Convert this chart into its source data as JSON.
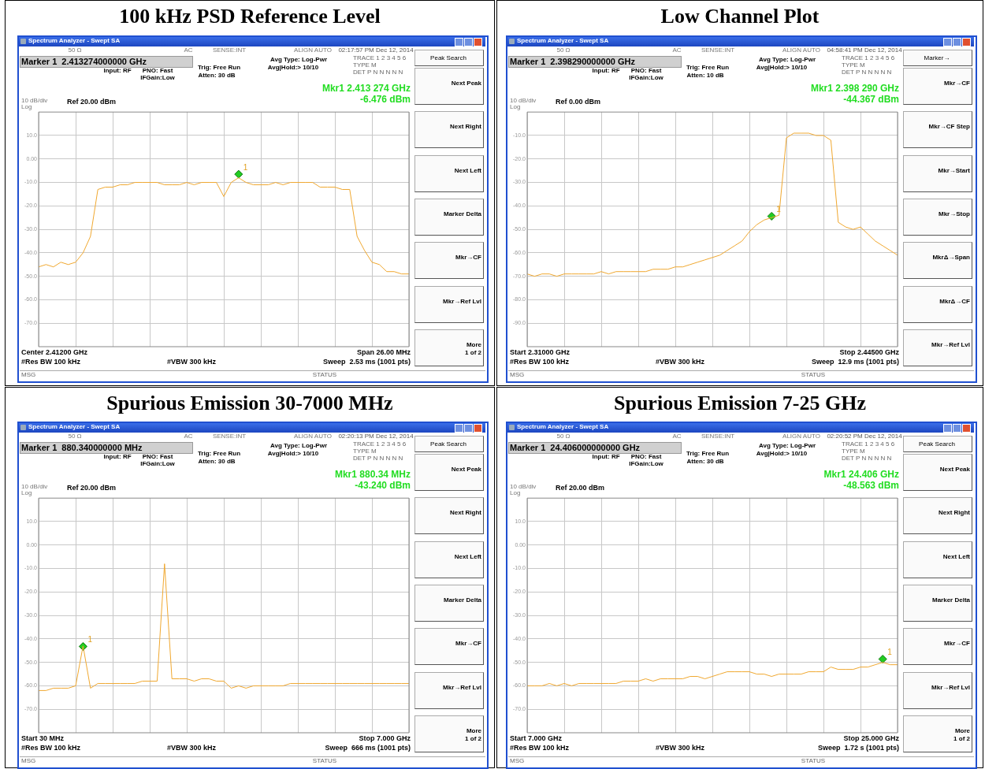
{
  "chart_data": [
    {
      "type": "line",
      "title": "100 kHz PSD Reference Level",
      "categories": [
        null,
        null,
        null,
        null,
        null,
        null,
        null,
        null,
        null,
        null,
        null,
        null,
        null,
        null,
        null,
        null,
        null,
        null,
        null,
        null,
        null,
        null,
        null,
        null,
        null,
        null,
        null,
        null,
        null,
        null,
        null,
        null,
        null,
        null,
        null,
        null,
        null,
        null,
        null,
        null,
        null,
        null,
        null,
        null,
        null,
        null,
        null,
        null,
        null,
        null,
        null
      ],
      "series": [
        {
          "color": "#f0a830",
          "values": [
            -46,
            -45,
            -46,
            -44,
            -45,
            -44,
            -40,
            -33,
            -13,
            -12,
            -12,
            -11,
            -11,
            -10,
            -10,
            -10,
            -10,
            -11,
            -11,
            -11,
            -10,
            -11,
            -10,
            -10,
            -10,
            -16,
            -10,
            -8,
            -10,
            -11,
            -11,
            -11,
            -10,
            -11,
            -10,
            -10,
            -10,
            -10,
            -12,
            -12,
            -12,
            -13,
            -13,
            -33,
            -39,
            -44,
            -45,
            -48,
            -48,
            -49,
            -49
          ]
        },
        {
          "type": "scatter",
          "marker": "diamond",
          "color": "#22cc22",
          "values": [
            null,
            null,
            null,
            null,
            null,
            null,
            null,
            null,
            null,
            null,
            null,
            null,
            null,
            null,
            null,
            null,
            null,
            null,
            null,
            null,
            null,
            null,
            null,
            null,
            null,
            null,
            null,
            -6.5,
            null,
            null,
            null,
            null,
            null,
            null,
            null,
            null,
            null,
            null,
            null,
            null,
            null,
            null,
            null,
            null,
            null,
            null,
            null,
            null,
            null,
            null,
            null
          ]
        }
      ],
      "ylim": [
        -80,
        20
      ],
      "yticks": [
        {
          "value": 10,
          "label": "10.0"
        },
        {
          "value": 0,
          "label": "0.00"
        },
        {
          "value": -10,
          "label": "-10.0"
        },
        {
          "value": -20,
          "label": "-20.0"
        },
        {
          "value": -30,
          "label": "-30.0"
        },
        {
          "value": -40,
          "label": "-40.0"
        },
        {
          "value": -50,
          "label": "-50.0"
        },
        {
          "value": -60,
          "label": "-60.0"
        },
        {
          "value": -70,
          "label": "-70.0"
        }
      ],
      "grid": true,
      "tick_labels": "y",
      "annotations": [
        "Spectrum Analyzer - Swept SA",
        "50 Ω",
        "AC",
        "SENSE:INT",
        "ALIGN AUTO",
        "02:17:57 PM Dec 12, 2014",
        "Marker 1  2.413274000000 GHz",
        "Input: RF",
        "PNO: Fast",
        "IFGain:Low",
        "Trig: Free Run",
        "Atten: 30 dB",
        "Avg Type: Log-Pwr",
        "Avg|Hold:> 10/10",
        "TRACE 1 2 3 4 5 6",
        "TYPE M",
        "DET P N N N N N",
        "Mkr1 2.413 274 GHz",
        "-6.476 dBm",
        "10 dB/div",
        "Log",
        "Ref 20.00 dBm",
        "Center 2.41200 GHz",
        "#Res BW 100 kHz",
        "#VBW 300 kHz",
        "Span 26.00 MHz",
        "Sweep  2.53 ms (1001 pts)",
        "MSG",
        "STATUS",
        "Peak Search",
        "Next Peak",
        "Next Right",
        "Next Left",
        "Marker Delta",
        "Mkr→CF",
        "Mkr→Ref Lvl",
        "More\n1 of 2",
        {
          "text": "1",
          "y": -6.5
        }
      ]
    },
    {
      "type": "line",
      "title": "Low Channel Plot",
      "categories": [
        null,
        null,
        null,
        null,
        null,
        null,
        null,
        null,
        null,
        null,
        null,
        null,
        null,
        null,
        null,
        null,
        null,
        null,
        null,
        null,
        null,
        null,
        null,
        null,
        null,
        null,
        null,
        null,
        null,
        null,
        null,
        null,
        null,
        null,
        null,
        null,
        null,
        null,
        null,
        null,
        null,
        null,
        null,
        null,
        null,
        null,
        null,
        null,
        null,
        null,
        null
      ],
      "series": [
        {
          "color": "#f0a830",
          "values": [
            -69,
            -70,
            -69,
            -69,
            -70,
            -69,
            -69,
            -69,
            -69,
            -69,
            -68,
            -69,
            -68,
            -68,
            -68,
            -68,
            -68,
            -67,
            -67,
            -67,
            -66,
            -66,
            -65,
            -64,
            -63,
            -62,
            -61,
            -59,
            -57,
            -55,
            -51,
            -48,
            -46,
            -45,
            -44,
            -11,
            -9,
            -9,
            -9,
            -10,
            -10,
            -12,
            -47,
            -49,
            -50,
            -49,
            -52,
            -55,
            -57,
            -59,
            -61
          ]
        },
        {
          "type": "scatter",
          "marker": "diamond",
          "color": "#22cc22",
          "values": [
            null,
            null,
            null,
            null,
            null,
            null,
            null,
            null,
            null,
            null,
            null,
            null,
            null,
            null,
            null,
            null,
            null,
            null,
            null,
            null,
            null,
            null,
            null,
            null,
            null,
            null,
            null,
            null,
            null,
            null,
            null,
            null,
            null,
            -44.4,
            null,
            null,
            null,
            null,
            null,
            null,
            null,
            null,
            null,
            null,
            null,
            null,
            null,
            null,
            null,
            null,
            null
          ]
        }
      ],
      "ylim": [
        -100,
        0
      ],
      "yticks": [
        {
          "value": -10,
          "label": "-10.0"
        },
        {
          "value": -20,
          "label": "-20.0"
        },
        {
          "value": -30,
          "label": "-30.0"
        },
        {
          "value": -40,
          "label": "-40.0"
        },
        {
          "value": -50,
          "label": "-50.0"
        },
        {
          "value": -60,
          "label": "-60.0"
        },
        {
          "value": -70,
          "label": "-70.0"
        },
        {
          "value": -80,
          "label": "-80.0"
        },
        {
          "value": -90,
          "label": "-90.0"
        }
      ],
      "grid": true,
      "tick_labels": "y",
      "annotations": [
        "Spectrum Analyzer - Swept SA",
        "50 Ω",
        "AC",
        "SENSE:INT",
        "ALIGN AUTO",
        "04:58:41 PM Dec 12, 2014",
        "Marker 1  2.398290000000 GHz",
        "Input: RF",
        "PNO: Fast",
        "IFGain:Low",
        "Trig: Free Run",
        "Atten: 10 dB",
        "Avg Type: Log-Pwr",
        "Avg|Hold:> 10/10",
        "TRACE 1 2 3 4 5 6",
        "TYPE M",
        "DET P N N N N N",
        "Mkr1 2.398 290 GHz",
        "-44.367 dBm",
        "10 dB/div",
        "Log",
        "Ref 0.00 dBm",
        "Start 2.31000 GHz",
        "#Res BW 100 kHz",
        "#VBW 300 kHz",
        "Stop 2.44500 GHz",
        "Sweep  12.9 ms (1001 pts)",
        "MSG",
        "STATUS",
        "Marker→",
        "Mkr→CF",
        "Mkr→CF Step",
        "Mkr→Start",
        "Mkr→Stop",
        "MkrΔ→Span",
        "MkrΔ→CF",
        "Mkr→Ref Lvl",
        {
          "text": "1",
          "y": -44.4
        }
      ]
    },
    {
      "type": "line",
      "title": "Spurious Emission 30-7000 MHz",
      "categories": [
        null,
        null,
        null,
        null,
        null,
        null,
        null,
        null,
        null,
        null,
        null,
        null,
        null,
        null,
        null,
        null,
        null,
        null,
        null,
        null,
        null,
        null,
        null,
        null,
        null,
        null,
        null,
        null,
        null,
        null,
        null,
        null,
        null,
        null,
        null,
        null,
        null,
        null,
        null,
        null,
        null,
        null,
        null,
        null,
        null,
        null,
        null,
        null,
        null,
        null,
        null
      ],
      "series": [
        {
          "color": "#f0a830",
          "values": [
            -62,
            -62,
            -61,
            -61,
            -61,
            -60,
            -43,
            -61,
            -59,
            -59,
            -59,
            -59,
            -59,
            -59,
            -58,
            -58,
            -58,
            -8,
            -57,
            -57,
            -57,
            -58,
            -57,
            -57,
            -58,
            -58,
            -61,
            -60,
            -61,
            -60,
            -60,
            -60,
            -60,
            -60,
            -59,
            -59,
            -59,
            -59,
            -59,
            -59,
            -59,
            -59,
            -59,
            -59,
            -59,
            -59,
            -59,
            -59,
            -59,
            -59,
            -59
          ]
        },
        {
          "type": "scatter",
          "marker": "diamond",
          "color": "#22cc22",
          "values": [
            null,
            null,
            null,
            null,
            null,
            null,
            -43.2,
            null,
            null,
            null,
            null,
            null,
            null,
            null,
            null,
            null,
            null,
            null,
            null,
            null,
            null,
            null,
            null,
            null,
            null,
            null,
            null,
            null,
            null,
            null,
            null,
            null,
            null,
            null,
            null,
            null,
            null,
            null,
            null,
            null,
            null,
            null,
            null,
            null,
            null,
            null,
            null,
            null,
            null,
            null,
            null
          ]
        }
      ],
      "ylim": [
        -80,
        20
      ],
      "yticks": [
        {
          "value": 10,
          "label": "10.0"
        },
        {
          "value": 0,
          "label": "0.00"
        },
        {
          "value": -10,
          "label": "-10.0"
        },
        {
          "value": -20,
          "label": "-20.0"
        },
        {
          "value": -30,
          "label": "-30.0"
        },
        {
          "value": -40,
          "label": "-40.0"
        },
        {
          "value": -50,
          "label": "-50.0"
        },
        {
          "value": -60,
          "label": "-60.0"
        },
        {
          "value": -70,
          "label": "-70.0"
        }
      ],
      "grid": true,
      "tick_labels": "y",
      "annotations": [
        "Spectrum Analyzer - Swept SA",
        "50 Ω",
        "AC",
        "SENSE:INT",
        "ALIGN AUTO",
        "02:20:13 PM Dec 12, 2014",
        "Marker 1  880.340000000 MHz",
        "Input: RF",
        "PNO: Fast",
        "IFGain:Low",
        "Trig: Free Run",
        "Atten: 30 dB",
        "Avg Type: Log-Pwr",
        "Avg|Hold:> 10/10",
        "TRACE 1 2 3 4 5 6",
        "TYPE M",
        "DET P N N N N N",
        "Mkr1 880.34 MHz",
        "-43.240 dBm",
        "10 dB/div",
        "Log",
        "Ref 20.00 dBm",
        "Start 30 MHz",
        "#Res BW 100 kHz",
        "#VBW 300 kHz",
        "Stop 7.000 GHz",
        "Sweep  666 ms (1001 pts)",
        "MSG",
        "STATUS",
        "Peak Search",
        "Next Peak",
        "Next Right",
        "Next Left",
        "Marker Delta",
        "Mkr→CF",
        "Mkr→Ref Lvl",
        "More\n1 of 2",
        {
          "text": "1",
          "y": -43.2
        }
      ]
    },
    {
      "type": "line",
      "title": "Spurious Emission 7-25 GHz",
      "categories": [
        null,
        null,
        null,
        null,
        null,
        null,
        null,
        null,
        null,
        null,
        null,
        null,
        null,
        null,
        null,
        null,
        null,
        null,
        null,
        null,
        null,
        null,
        null,
        null,
        null,
        null,
        null,
        null,
        null,
        null,
        null,
        null,
        null,
        null,
        null,
        null,
        null,
        null,
        null,
        null,
        null,
        null,
        null,
        null,
        null,
        null,
        null,
        null,
        null,
        null,
        null
      ],
      "series": [
        {
          "color": "#f0a830",
          "values": [
            -60,
            -60,
            -60,
            -59,
            -60,
            -59,
            -60,
            -59,
            -59,
            -59,
            -59,
            -59,
            -59,
            -58,
            -58,
            -58,
            -57,
            -58,
            -57,
            -57,
            -57,
            -57,
            -56,
            -56,
            -57,
            -56,
            -55,
            -54,
            -54,
            -54,
            -54,
            -55,
            -55,
            -56,
            -55,
            -55,
            -55,
            -55,
            -54,
            -54,
            -54,
            -52,
            -53,
            -53,
            -53,
            -52,
            -52,
            -51,
            -50,
            -51,
            -51
          ]
        },
        {
          "type": "scatter",
          "marker": "diamond",
          "color": "#22cc22",
          "values": [
            null,
            null,
            null,
            null,
            null,
            null,
            null,
            null,
            null,
            null,
            null,
            null,
            null,
            null,
            null,
            null,
            null,
            null,
            null,
            null,
            null,
            null,
            null,
            null,
            null,
            null,
            null,
            null,
            null,
            null,
            null,
            null,
            null,
            null,
            null,
            null,
            null,
            null,
            null,
            null,
            null,
            null,
            null,
            null,
            null,
            null,
            null,
            null,
            -48.6,
            null,
            null
          ]
        }
      ],
      "ylim": [
        -80,
        20
      ],
      "yticks": [
        {
          "value": 10,
          "label": "10.0"
        },
        {
          "value": 0,
          "label": "0.00"
        },
        {
          "value": -10,
          "label": "-10.0"
        },
        {
          "value": -20,
          "label": "-20.0"
        },
        {
          "value": -30,
          "label": "-30.0"
        },
        {
          "value": -40,
          "label": "-40.0"
        },
        {
          "value": -50,
          "label": "-50.0"
        },
        {
          "value": -60,
          "label": "-60.0"
        },
        {
          "value": -70,
          "label": "-70.0"
        }
      ],
      "grid": true,
      "tick_labels": "y",
      "annotations": [
        "Spectrum Analyzer - Swept SA",
        "50 Ω",
        "AC",
        "SENSE:INT",
        "ALIGN AUTO",
        "02:20:52 PM Dec 12, 2014",
        "Marker 1  24.406000000000 GHz",
        "Input: RF",
        "PNO: Fast",
        "IFGain:Low",
        "Trig: Free Run",
        "Atten: 30 dB",
        "Avg Type: Log-Pwr",
        "Avg|Hold:> 10/10",
        "TRACE 1 2 3 4 5 6",
        "TYPE M",
        "DET P N N N N N",
        "Mkr1 24.406 GHz",
        "-48.563 dBm",
        "10 dB/div",
        "Log",
        "Ref 20.00 dBm",
        "Start 7.000 GHz",
        "#Res BW 100 kHz",
        "#VBW 300 kHz",
        "Stop 25.000 GHz",
        "Sweep  1.72 s (1001 pts)",
        "MSG",
        "STATUS",
        "Peak Search",
        "Next Peak",
        "Next Right",
        "Next Left",
        "Marker Delta",
        "Mkr→CF",
        "Mkr→Ref Lvl",
        "More\n1 of 2",
        {
          "text": "1",
          "y": -48.6
        }
      ]
    }
  ]
}
